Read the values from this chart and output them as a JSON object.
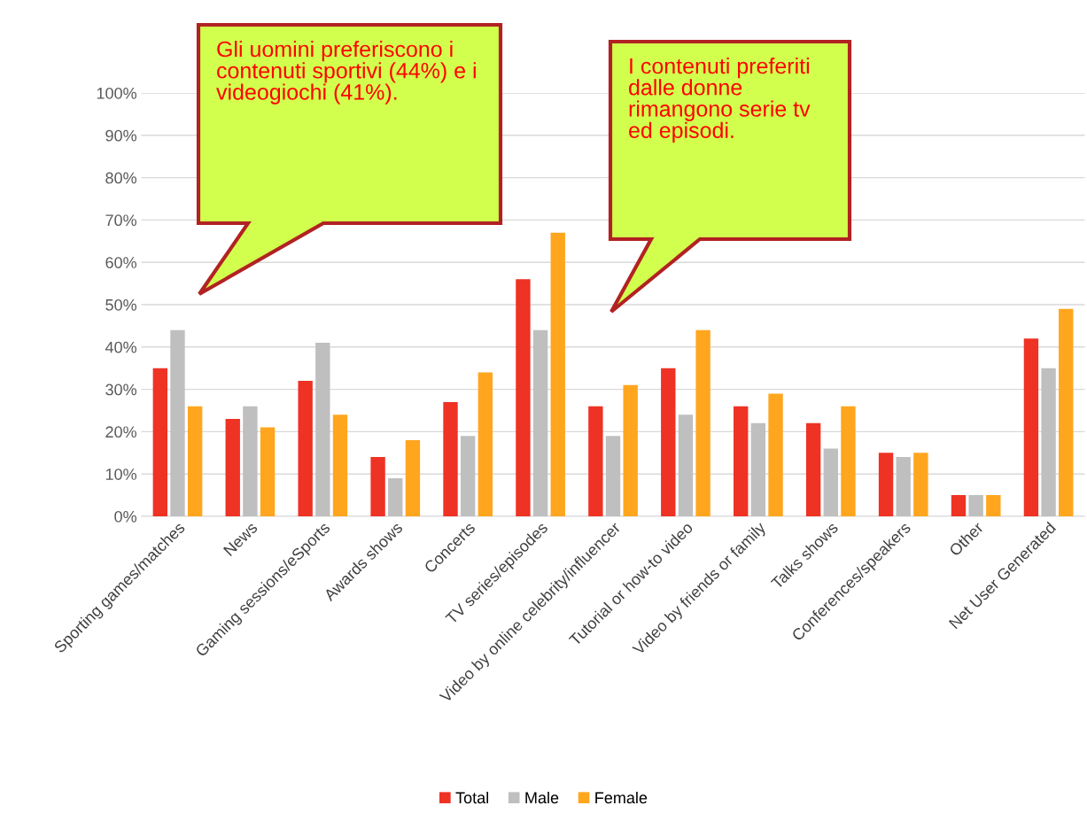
{
  "chart_data": {
    "type": "bar",
    "categories": [
      "Sporting games/matches",
      "News",
      "Gaming sessions/eSports",
      "Awards shows",
      "Concerts",
      "TV series/episodes",
      "Video by online celebrity/influencer",
      "Tutorial or how-to video",
      "Video by friends or family",
      "Talks shows",
      "Conferences/speakers",
      "Other",
      "Net User Generated"
    ],
    "series": [
      {
        "name": "Total",
        "color": "#ee3224",
        "values": [
          35,
          23,
          32,
          14,
          27,
          56,
          26,
          35,
          26,
          22,
          15,
          5,
          42
        ]
      },
      {
        "name": "Male",
        "color": "#bfbfbf",
        "values": [
          44,
          26,
          41,
          9,
          19,
          44,
          19,
          24,
          22,
          16,
          14,
          5,
          35
        ]
      },
      {
        "name": "Female",
        "color": "#ffa61e",
        "values": [
          26,
          21,
          24,
          18,
          34,
          67,
          31,
          44,
          29,
          26,
          15,
          5,
          49
        ]
      }
    ],
    "ylim": [
      0,
      100
    ],
    "yticks": [
      {
        "value": 0,
        "label": "0%"
      },
      {
        "value": 10,
        "label": "10%"
      },
      {
        "value": 20,
        "label": "20%"
      },
      {
        "value": 30,
        "label": "30%"
      },
      {
        "value": 40,
        "label": "40%"
      },
      {
        "value": 50,
        "label": "50%"
      },
      {
        "value": 60,
        "label": "60%"
      },
      {
        "value": 70,
        "label": "70%"
      },
      {
        "value": 80,
        "label": "80%"
      },
      {
        "value": 90,
        "label": "90%"
      },
      {
        "value": 100,
        "label": "100%"
      }
    ],
    "grid": "y",
    "legend": "bottom",
    "annotations": [
      "Gli uomini preferiscono i contenuti sportivi (44%) e i videogiochi (41%).",
      "I contenuti preferiti dalle donne rimangono serie tv ed episodi."
    ]
  }
}
